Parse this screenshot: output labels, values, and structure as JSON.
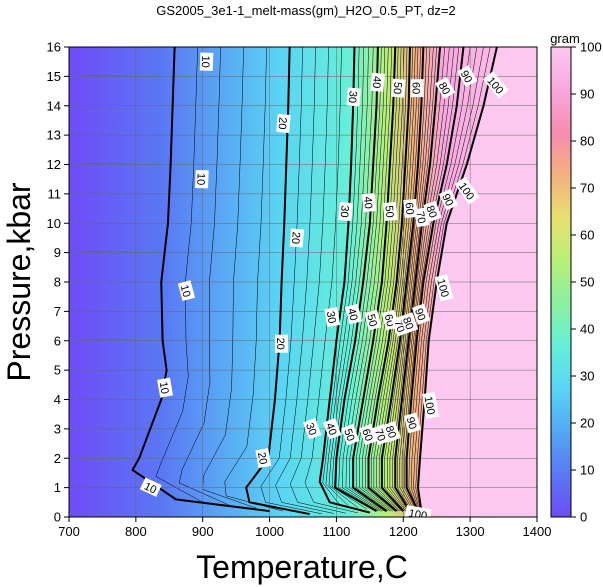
{
  "chart_data": {
    "type": "heatmap",
    "title": "GS2005_3e1-1_melt-mass(gm)_H2O_0.5_PT, dz=2",
    "xlabel": "Temperature,C",
    "ylabel": "Pressure,kbar",
    "xlim": [
      700,
      1400
    ],
    "ylim": [
      0,
      16
    ],
    "xticks": [
      700,
      800,
      900,
      1000,
      1100,
      1200,
      1300,
      1400
    ],
    "yticks": [
      0,
      1,
      2,
      3,
      4,
      5,
      6,
      7,
      8,
      9,
      10,
      11,
      12,
      13,
      14,
      15,
      16
    ],
    "grid": true,
    "colorbar": {
      "label": "gram",
      "range": [
        0,
        100
      ],
      "ticks": [
        0,
        10,
        20,
        30,
        40,
        50,
        60,
        70,
        80,
        90,
        100
      ],
      "colors": [
        "#6e4cf8",
        "#5a78f4",
        "#52a8f4",
        "#5ad4f4",
        "#66f0d8",
        "#8cf0a0",
        "#b8f078",
        "#e8e070",
        "#f4b080",
        "#f88cb0",
        "#f8a8e0",
        "#fcc8f0"
      ]
    },
    "contour_interval": 2,
    "labeled_contours": [
      {
        "level": 10,
        "points": [
          [
            858,
            16
          ],
          [
            855,
            14
          ],
          [
            852,
            12
          ],
          [
            848,
            10
          ],
          [
            838,
            8
          ],
          [
            840,
            6
          ],
          [
            846,
            5
          ],
          [
            838,
            4
          ],
          [
            805,
            2
          ],
          [
            795,
            1.6
          ],
          [
            860,
            0.6
          ],
          [
            1000,
            0.2
          ]
        ]
      },
      {
        "level": 20,
        "points": [
          [
            1030,
            16
          ],
          [
            1028,
            14
          ],
          [
            1025,
            12
          ],
          [
            1022,
            10
          ],
          [
            1018,
            8
          ],
          [
            1015,
            6
          ],
          [
            1008,
            4
          ],
          [
            998,
            2
          ],
          [
            965,
            1
          ],
          [
            970,
            0.5
          ],
          [
            1060,
            0.1
          ]
        ]
      },
      {
        "level": 30,
        "points": [
          [
            1127,
            16
          ],
          [
            1125,
            14
          ],
          [
            1122,
            12
          ],
          [
            1118,
            10
          ],
          [
            1112,
            8
          ],
          [
            1100,
            6
          ],
          [
            1090,
            4
          ],
          [
            1080,
            2
          ],
          [
            1075,
            1.2
          ],
          [
            1090,
            0.5
          ],
          [
            1150,
            0.15
          ]
        ]
      },
      {
        "level": 40,
        "points": [
          [
            1162,
            16
          ],
          [
            1160,
            14
          ],
          [
            1155,
            12
          ],
          [
            1150,
            10
          ],
          [
            1140,
            8
          ],
          [
            1128,
            6
          ],
          [
            1112,
            4
          ],
          [
            1100,
            2
          ],
          [
            1098,
            1
          ],
          [
            1160,
            0.2
          ]
        ]
      },
      {
        "level": 50,
        "points": [
          [
            1188,
            16
          ],
          [
            1185,
            14
          ],
          [
            1180,
            12
          ],
          [
            1175,
            10
          ],
          [
            1168,
            8
          ],
          [
            1155,
            6
          ],
          [
            1140,
            4
          ],
          [
            1125,
            2
          ],
          [
            1125,
            1
          ],
          [
            1175,
            0.2
          ]
        ]
      },
      {
        "level": 60,
        "points": [
          [
            1210,
            16
          ],
          [
            1208,
            14
          ],
          [
            1203,
            12
          ],
          [
            1198,
            10
          ],
          [
            1190,
            8
          ],
          [
            1178,
            6
          ],
          [
            1162,
            4
          ],
          [
            1148,
            2
          ],
          [
            1148,
            1
          ],
          [
            1190,
            0.2
          ]
        ]
      },
      {
        "level": 70,
        "points": [
          [
            1230,
            16
          ],
          [
            1227,
            14
          ],
          [
            1222,
            12
          ],
          [
            1215,
            10
          ],
          [
            1205,
            8
          ],
          [
            1195,
            6
          ],
          [
            1182,
            4
          ],
          [
            1168,
            2
          ],
          [
            1168,
            1
          ],
          [
            1200,
            0.2
          ]
        ]
      },
      {
        "level": 80,
        "points": [
          [
            1255,
            16
          ],
          [
            1248,
            14
          ],
          [
            1240,
            12
          ],
          [
            1228,
            10
          ],
          [
            1218,
            8
          ],
          [
            1208,
            6
          ],
          [
            1198,
            4
          ],
          [
            1188,
            2
          ],
          [
            1188,
            1
          ],
          [
            1210,
            0.2
          ]
        ]
      },
      {
        "level": 90,
        "points": [
          [
            1290,
            16
          ],
          [
            1280,
            14
          ],
          [
            1265,
            12
          ],
          [
            1245,
            10
          ],
          [
            1230,
            8
          ],
          [
            1220,
            6
          ],
          [
            1212,
            4
          ],
          [
            1205,
            2
          ],
          [
            1205,
            1
          ],
          [
            1222,
            0.2
          ]
        ]
      },
      {
        "level": 100,
        "points": [
          [
            1340,
            16
          ],
          [
            1320,
            14
          ],
          [
            1295,
            12
          ],
          [
            1265,
            10
          ],
          [
            1250,
            8
          ],
          [
            1238,
            6
          ],
          [
            1232,
            4
          ],
          [
            1225,
            2
          ],
          [
            1222,
            1
          ],
          [
            1228,
            0.05
          ]
        ]
      }
    ],
    "contour_labels": [
      {
        "text": "10",
        "x": 905,
        "y": 15.5,
        "angle": 92
      },
      {
        "text": "10",
        "x": 898,
        "y": 11.5,
        "angle": 92
      },
      {
        "text": "10",
        "x": 875,
        "y": 7.7,
        "angle": 75
      },
      {
        "text": "10",
        "x": 843,
        "y": 4.4,
        "angle": 80
      },
      {
        "text": "10",
        "x": 822,
        "y": 1.0,
        "angle": 25
      },
      {
        "text": "20",
        "x": 1020,
        "y": 13.4,
        "angle": 95
      },
      {
        "text": "20",
        "x": 1040,
        "y": 9.5,
        "angle": 95
      },
      {
        "text": "20",
        "x": 1017,
        "y": 5.9,
        "angle": 90
      },
      {
        "text": "20",
        "x": 990,
        "y": 2.0,
        "angle": 80
      },
      {
        "text": "30",
        "x": 1125,
        "y": 14.3,
        "angle": 95
      },
      {
        "text": "30",
        "x": 1113,
        "y": 10.4,
        "angle": 95
      },
      {
        "text": "30",
        "x": 1093,
        "y": 6.8,
        "angle": 80
      },
      {
        "text": "30",
        "x": 1063,
        "y": 3.0,
        "angle": 70
      },
      {
        "text": "40",
        "x": 1161,
        "y": 14.8,
        "angle": 95
      },
      {
        "text": "40",
        "x": 1148,
        "y": 10.7,
        "angle": 85
      },
      {
        "text": "40",
        "x": 1125,
        "y": 6.9,
        "angle": 75
      },
      {
        "text": "40",
        "x": 1093,
        "y": 3.0,
        "angle": 70
      },
      {
        "text": "50",
        "x": 1192,
        "y": 14.6,
        "angle": 95
      },
      {
        "text": "50",
        "x": 1180,
        "y": 10.4,
        "angle": 85
      },
      {
        "text": "50",
        "x": 1154,
        "y": 6.7,
        "angle": 75
      },
      {
        "text": "50",
        "x": 1120,
        "y": 2.8,
        "angle": 70
      },
      {
        "text": "60",
        "x": 1220,
        "y": 14.6,
        "angle": 90
      },
      {
        "text": "60",
        "x": 1210,
        "y": 10.5,
        "angle": 85
      },
      {
        "text": "60",
        "x": 1180,
        "y": 6.7,
        "angle": 75
      },
      {
        "text": "60",
        "x": 1147,
        "y": 2.8,
        "angle": 70
      },
      {
        "text": "70",
        "x": 1227,
        "y": 10.2,
        "angle": 80
      },
      {
        "text": "70",
        "x": 1195,
        "y": 6.5,
        "angle": 70
      },
      {
        "text": "70",
        "x": 1166,
        "y": 2.8,
        "angle": 70
      },
      {
        "text": "80",
        "x": 1262,
        "y": 14.6,
        "angle": 60
      },
      {
        "text": "80",
        "x": 1243,
        "y": 10.4,
        "angle": 70
      },
      {
        "text": "80",
        "x": 1208,
        "y": 6.6,
        "angle": 70
      },
      {
        "text": "80",
        "x": 1182,
        "y": 2.9,
        "angle": 70
      },
      {
        "text": "90",
        "x": 1295,
        "y": 15.0,
        "angle": 60
      },
      {
        "text": "90",
        "x": 1267,
        "y": 10.8,
        "angle": 65
      },
      {
        "text": "90",
        "x": 1226,
        "y": 6.9,
        "angle": 70
      },
      {
        "text": "90",
        "x": 1213,
        "y": 3.2,
        "angle": 75
      },
      {
        "text": "100",
        "x": 1338,
        "y": 14.7,
        "angle": 50
      },
      {
        "text": "100",
        "x": 1295,
        "y": 11.1,
        "angle": 55
      },
      {
        "text": "100",
        "x": 1260,
        "y": 7.8,
        "angle": 75
      },
      {
        "text": "100",
        "x": 1240,
        "y": 3.8,
        "angle": 80
      },
      {
        "text": "100",
        "x": 1222,
        "y": 0.1,
        "angle": 10
      }
    ]
  }
}
